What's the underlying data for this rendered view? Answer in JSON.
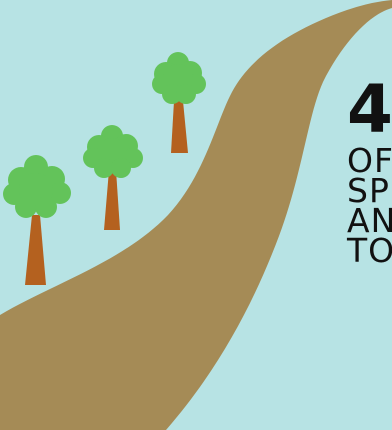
{
  "scene": {
    "background_color": "#b7e3e4",
    "path_color": "#a58b56",
    "tree_foliage_color": "#63c35a",
    "tree_trunk_color": "#b4611f"
  },
  "headline": {
    "number": "4",
    "lines": [
      "OF",
      "SP",
      "AN",
      "TO"
    ]
  }
}
